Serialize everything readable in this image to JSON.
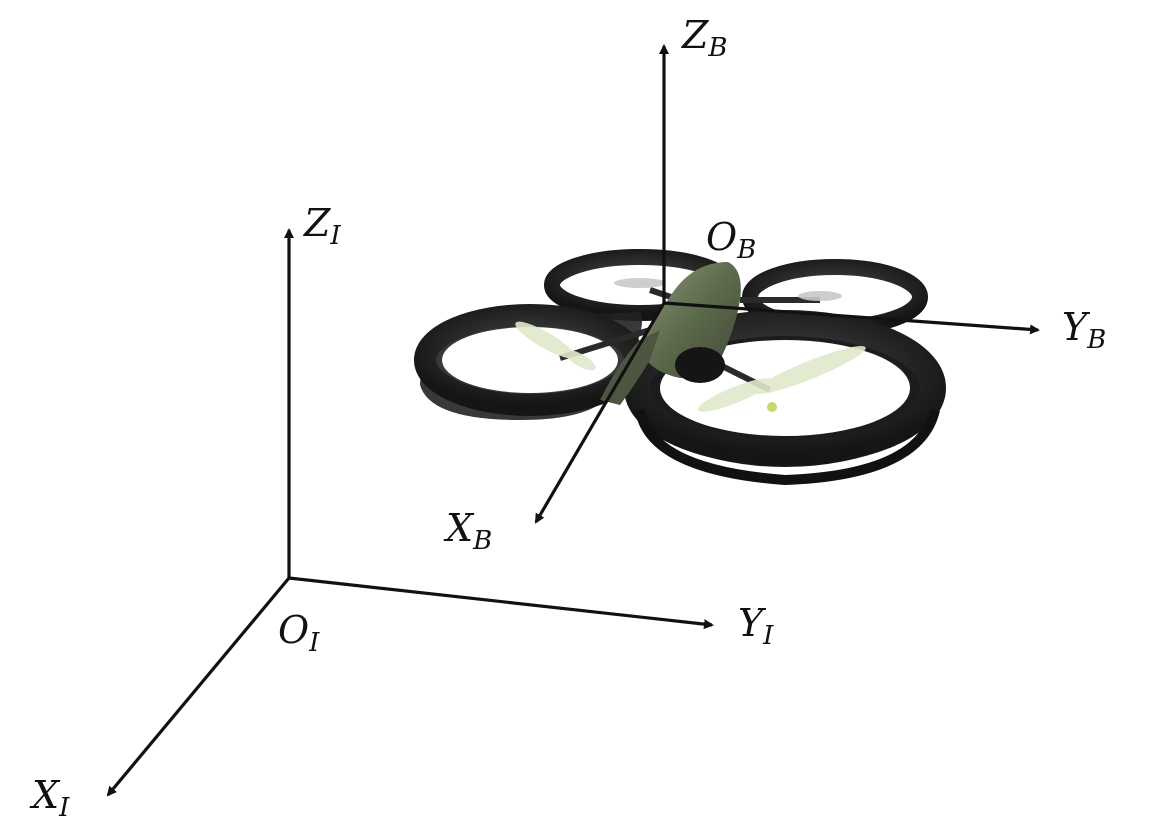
{
  "inertial_frame": {
    "origin": {
      "main": "O",
      "sub": "I"
    },
    "x_axis": {
      "main": "X",
      "sub": "I"
    },
    "y_axis": {
      "main": "Y",
      "sub": "I"
    },
    "z_axis": {
      "main": "Z",
      "sub": "I"
    }
  },
  "body_frame": {
    "origin": {
      "main": "O",
      "sub": "B"
    },
    "x_axis": {
      "main": "X",
      "sub": "B"
    },
    "y_axis": {
      "main": "Y",
      "sub": "B"
    },
    "z_axis": {
      "main": "Z",
      "sub": "B"
    }
  },
  "colors": {
    "axis": "#111111",
    "hull": "#1e1e1e",
    "hull_edge": "#3a3a3a",
    "camo": "#6e7a5c",
    "propeller": "#d9e6c4"
  },
  "drone": {
    "name": "quadrotor-drone"
  }
}
